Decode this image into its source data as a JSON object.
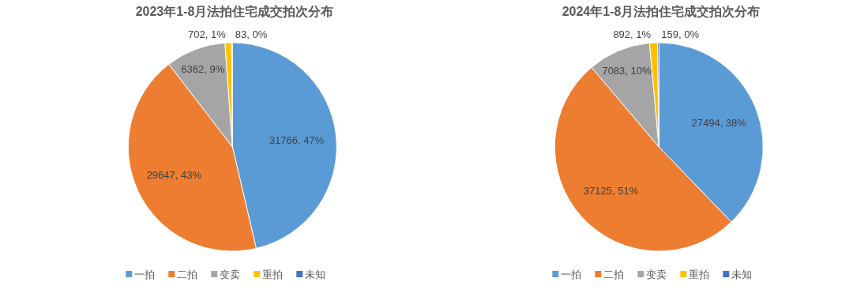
{
  "chart_data": [
    {
      "type": "pie",
      "title": "2023年1-8月法拍住宅成交拍次分布",
      "categories": [
        "一拍",
        "二拍",
        "变卖",
        "重拍",
        "未知"
      ],
      "values": [
        31766,
        29647,
        6362,
        702,
        83
      ],
      "colors": [
        "#5b9bd5",
        "#ed7d31",
        "#a5a5a5",
        "#ffc000",
        "#4472c4"
      ],
      "value_labels": [
        "31766, 47%",
        "29647, 43%",
        "6362, 9%",
        "702, 1%",
        "83, 0%"
      ],
      "legend": "bottom"
    },
    {
      "type": "pie",
      "title": "2024年1-8月法拍住宅成交拍次分布",
      "categories": [
        "一拍",
        "二拍",
        "变卖",
        "重拍",
        "未知"
      ],
      "values": [
        27494,
        37125,
        7083,
        892,
        159
      ],
      "colors": [
        "#5b9bd5",
        "#ed7d31",
        "#a5a5a5",
        "#ffc000",
        "#4472c4"
      ],
      "value_labels": [
        "27494, 38%",
        "37125, 51%",
        "7083, 10%",
        "892, 1%",
        "159, 0%"
      ],
      "legend": "bottom"
    }
  ]
}
